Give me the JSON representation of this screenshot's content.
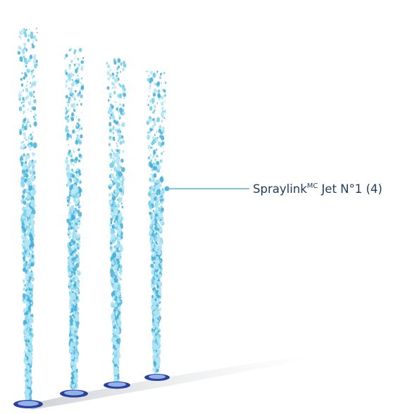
{
  "label": {
    "name": "Spraylink",
    "superscript": "MC",
    "rest": "Jet N°1 (4)"
  }
}
